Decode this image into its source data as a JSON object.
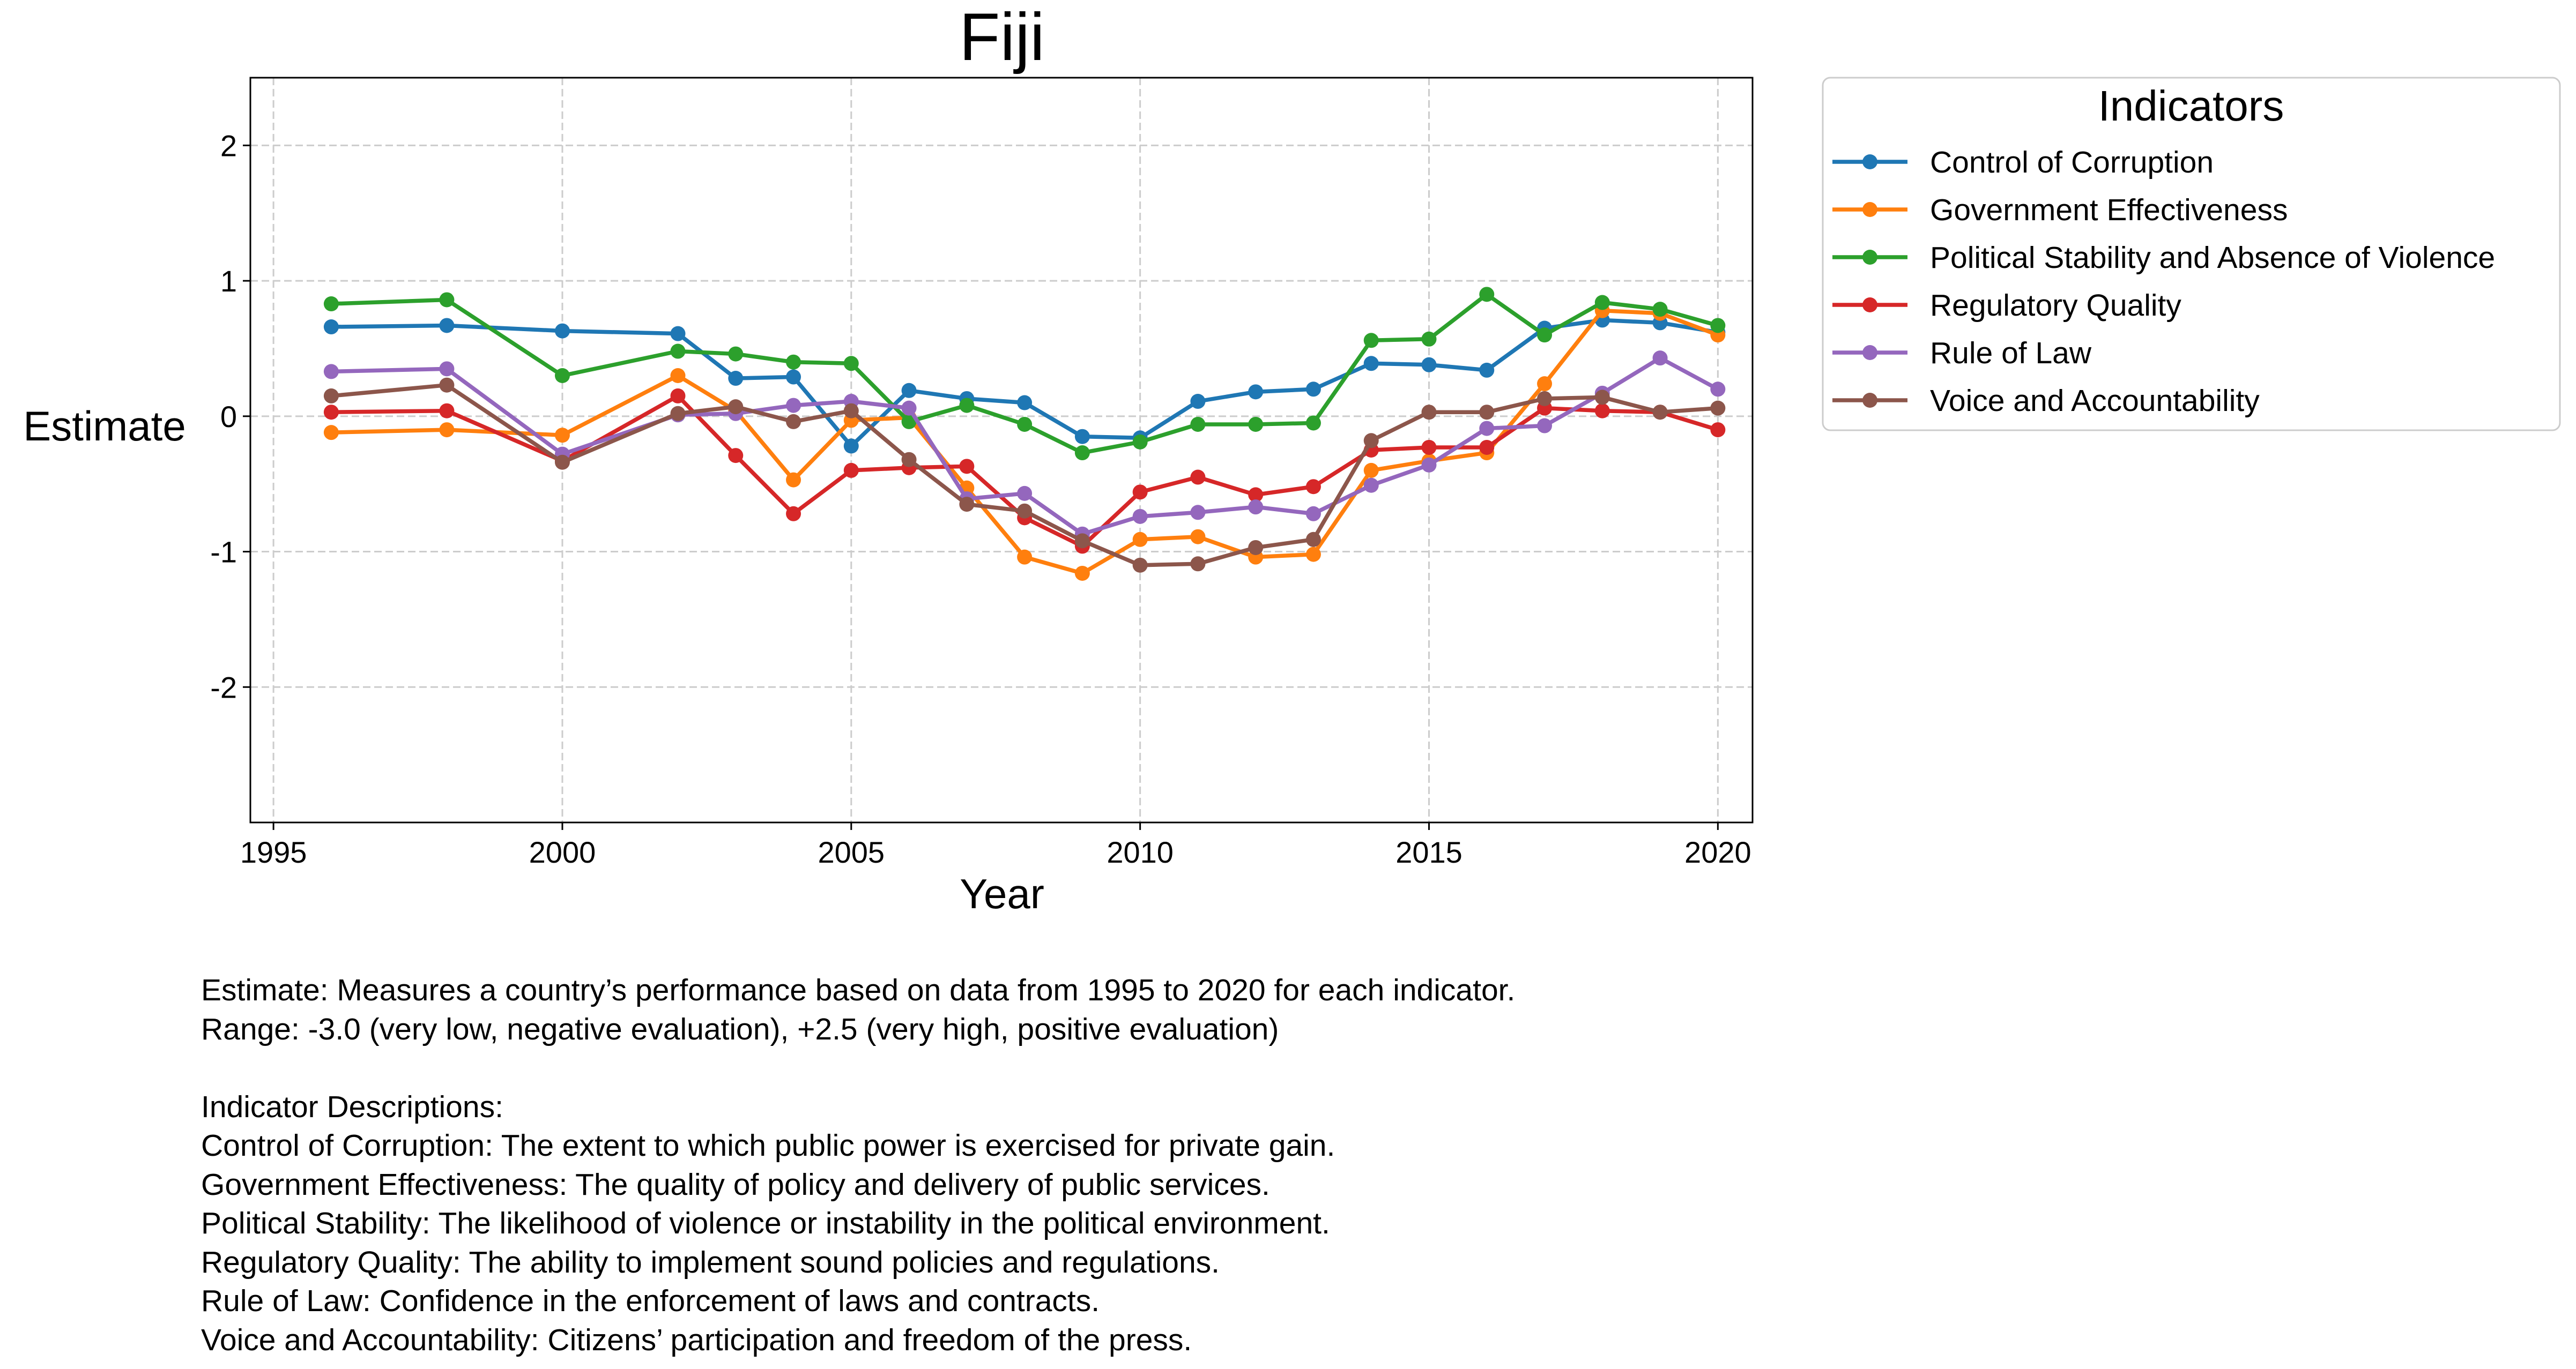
{
  "chart_data": {
    "type": "line",
    "title": "Fiji",
    "xlabel": "Year",
    "ylabel": "Estimate",
    "xlim": [
      1994.6,
      2020.6
    ],
    "ylim": [
      -3.0,
      2.5
    ],
    "x_ticks": [
      1995,
      2000,
      2005,
      2010,
      2015,
      2020
    ],
    "y_ticks": [
      -2,
      -1,
      0,
      1,
      2
    ],
    "grid": true,
    "legend_title": "Indicators",
    "legend_position": "outside-top-right",
    "series": [
      {
        "name": "Control of Corruption",
        "color": "#1f77b4",
        "x": [
          1996,
          1998,
          2000,
          2002,
          2003,
          2004,
          2005,
          2006,
          2007,
          2008,
          2009,
          2010,
          2011,
          2012,
          2013,
          2014,
          2015,
          2016,
          2017,
          2018,
          2019,
          2020
        ],
        "y": [
          0.66,
          0.67,
          0.63,
          0.61,
          0.28,
          0.29,
          -0.22,
          0.19,
          0.13,
          0.1,
          -0.15,
          -0.16,
          0.11,
          0.18,
          0.2,
          0.39,
          0.38,
          0.34,
          0.65,
          0.71,
          0.69,
          0.62
        ]
      },
      {
        "name": "Government Effectiveness",
        "color": "#ff7f0e",
        "x": [
          1996,
          1998,
          2000,
          2002,
          2003,
          2004,
          2005,
          2006,
          2007,
          2008,
          2009,
          2010,
          2011,
          2012,
          2013,
          2014,
          2015,
          2016,
          2017,
          2018,
          2019,
          2020
        ],
        "y": [
          -0.12,
          -0.1,
          -0.14,
          0.3,
          0.04,
          -0.47,
          -0.03,
          -0.01,
          -0.53,
          -1.04,
          -1.16,
          -0.91,
          -0.89,
          -1.04,
          -1.02,
          -0.4,
          -0.33,
          -0.27,
          0.24,
          0.78,
          0.76,
          0.6
        ]
      },
      {
        "name": "Political Stability and Absence of Violence",
        "color": "#2ca02c",
        "x": [
          1996,
          1998,
          2000,
          2002,
          2003,
          2004,
          2005,
          2006,
          2007,
          2008,
          2009,
          2010,
          2011,
          2012,
          2013,
          2014,
          2015,
          2016,
          2017,
          2018,
          2019,
          2020
        ],
        "y": [
          0.83,
          0.86,
          0.3,
          0.48,
          0.46,
          0.4,
          0.39,
          -0.04,
          0.08,
          -0.06,
          -0.27,
          -0.19,
          -0.06,
          -0.06,
          -0.05,
          0.56,
          0.57,
          0.9,
          0.6,
          0.84,
          0.79,
          0.67
        ]
      },
      {
        "name": "Regulatory Quality",
        "color": "#d62728",
        "x": [
          1996,
          1998,
          2000,
          2002,
          2003,
          2004,
          2005,
          2006,
          2007,
          2008,
          2009,
          2010,
          2011,
          2012,
          2013,
          2014,
          2015,
          2016,
          2017,
          2018,
          2019,
          2020
        ],
        "y": [
          0.03,
          0.04,
          -0.33,
          0.15,
          -0.29,
          -0.72,
          -0.4,
          -0.38,
          -0.37,
          -0.75,
          -0.96,
          -0.56,
          -0.45,
          -0.58,
          -0.52,
          -0.25,
          -0.23,
          -0.23,
          0.06,
          0.04,
          0.03,
          -0.1
        ]
      },
      {
        "name": "Rule of Law",
        "color": "#9467bd",
        "x": [
          1996,
          1998,
          2000,
          2002,
          2003,
          2004,
          2005,
          2006,
          2007,
          2008,
          2009,
          2010,
          2011,
          2012,
          2013,
          2014,
          2015,
          2016,
          2017,
          2018,
          2019,
          2020
        ],
        "y": [
          0.33,
          0.35,
          -0.28,
          0.01,
          0.02,
          0.08,
          0.11,
          0.06,
          -0.61,
          -0.57,
          -0.87,
          -0.74,
          -0.71,
          -0.67,
          -0.72,
          -0.51,
          -0.36,
          -0.09,
          -0.07,
          0.17,
          0.43,
          0.2
        ]
      },
      {
        "name": "Voice and Accountability",
        "color": "#8c564b",
        "x": [
          1996,
          1998,
          2000,
          2002,
          2003,
          2004,
          2005,
          2006,
          2007,
          2008,
          2009,
          2010,
          2011,
          2012,
          2013,
          2014,
          2015,
          2016,
          2017,
          2018,
          2019,
          2020
        ],
        "y": [
          0.15,
          0.23,
          -0.34,
          0.02,
          0.07,
          -0.04,
          0.04,
          -0.32,
          -0.65,
          -0.7,
          -0.92,
          -1.1,
          -1.09,
          -0.97,
          -0.91,
          -0.18,
          0.03,
          0.03,
          0.13,
          0.14,
          0.03,
          0.06
        ]
      }
    ]
  },
  "notes": {
    "lines": [
      "Estimate: Measures a country’s performance based on data from 1995 to 2020 for each indicator.",
      "Range: -3.0 (very low, negative evaluation), +2.5 (very high, positive evaluation)",
      "",
      "Indicator Descriptions:",
      "Control of Corruption: The extent to which public power is exercised for private gain.",
      "Government Effectiveness: The quality of policy and delivery of public services.",
      "Political Stability: The likelihood of violence or instability in the political environment.",
      "Regulatory Quality: The ability to implement sound policies and regulations.",
      "Rule of Law: Confidence in the enforcement of laws and contracts.",
      "Voice and Accountability: Citizens’ participation and freedom of the press."
    ]
  }
}
